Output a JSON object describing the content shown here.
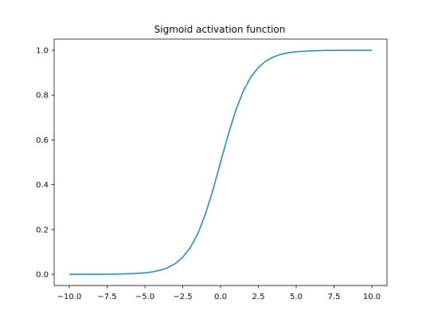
{
  "chart_data": {
    "type": "line",
    "title": "Sigmoid activation function",
    "xlabel": "",
    "ylabel": "",
    "xlim": [
      -11.0,
      11.0
    ],
    "ylim": [
      -0.05,
      1.05
    ],
    "grid": false,
    "x_ticks": [
      -10.0,
      -7.5,
      -5.0,
      -2.5,
      0.0,
      2.5,
      5.0,
      7.5,
      10.0
    ],
    "x_tick_labels": [
      "−10.0",
      "−7.5",
      "−5.0",
      "−2.5",
      "0.0",
      "2.5",
      "5.0",
      "7.5",
      "10.0"
    ],
    "y_ticks": [
      0.0,
      0.2,
      0.4,
      0.6,
      0.8,
      1.0
    ],
    "y_tick_labels": [
      "0.0",
      "0.2",
      "0.4",
      "0.6",
      "0.8",
      "1.0"
    ],
    "series": [
      {
        "color": "#1f77b4",
        "x": [
          -10,
          -9,
          -8,
          -7,
          -6,
          -5,
          -4.5,
          -4,
          -3.5,
          -3,
          -2.5,
          -2,
          -1.5,
          -1,
          -0.5,
          0,
          0.5,
          1,
          1.5,
          2,
          2.5,
          3,
          3.5,
          4,
          4.5,
          5,
          6,
          7,
          8,
          9,
          10
        ],
        "y": [
          0.0,
          0.0001,
          0.0003,
          0.0009,
          0.0025,
          0.0067,
          0.011,
          0.018,
          0.0293,
          0.0474,
          0.0759,
          0.1192,
          0.1824,
          0.2689,
          0.3775,
          0.5,
          0.6225,
          0.7311,
          0.8176,
          0.8808,
          0.9241,
          0.9526,
          0.9707,
          0.982,
          0.989,
          0.9933,
          0.9975,
          0.9991,
          0.9997,
          0.9999,
          1.0
        ]
      }
    ]
  }
}
